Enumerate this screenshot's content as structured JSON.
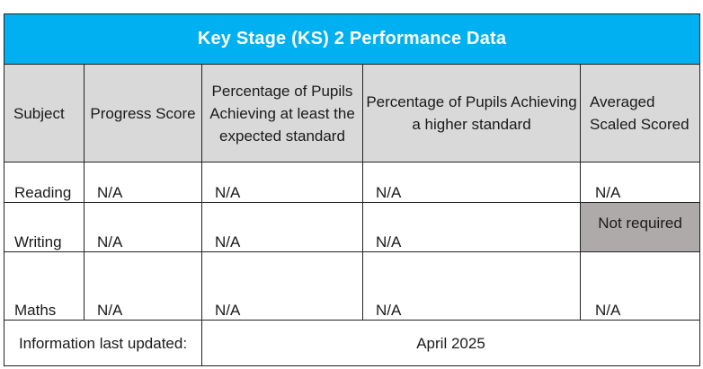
{
  "table": {
    "title": "Key Stage (KS) 2 Performance Data",
    "headers": [
      "Subject",
      "Progress Score",
      "Percentage of Pupils Achieving at least the expected standard",
      "Percentage of Pupils Achieving a higher standard",
      "Averaged Scaled Scored"
    ],
    "rows": [
      {
        "subject": "Reading",
        "progress": "N/A",
        "expected": "N/A",
        "higher": "N/A",
        "scaled": "N/A"
      },
      {
        "subject": "Writing",
        "progress": "N/A",
        "expected": "N/A",
        "higher": "N/A",
        "scaled": "Not required"
      },
      {
        "subject": "Maths",
        "progress": "N/A",
        "expected": "N/A",
        "higher": "N/A",
        "scaled": "N/A"
      }
    ],
    "footer": {
      "label": "Information last updated:",
      "value": "April 2025"
    }
  },
  "colors": {
    "title_bg": "#00b0f0",
    "header_bg": "#d9d9d9",
    "not_required_bg": "#aeaaaa"
  }
}
